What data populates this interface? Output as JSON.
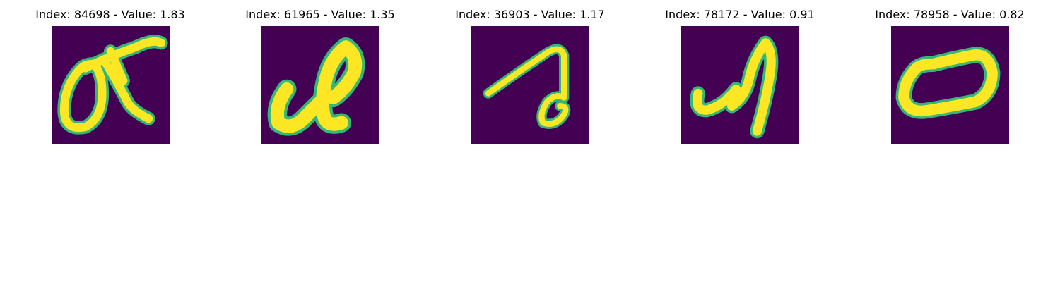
{
  "colors": {
    "background": "#440154",
    "stroke_low": "#35b779",
    "stroke_mid": "#a0da39",
    "stroke_high": "#fde725"
  },
  "panels": [
    {
      "title": "Index: 84698 - Value: 1.83"
    },
    {
      "title": "Index: 61965 - Value: 1.35"
    },
    {
      "title": "Index: 36903 - Value: 1.17"
    },
    {
      "title": "Index: 78172 - Value: 0.91"
    },
    {
      "title": "Index: 78958 - Value: 0.82"
    }
  ]
}
